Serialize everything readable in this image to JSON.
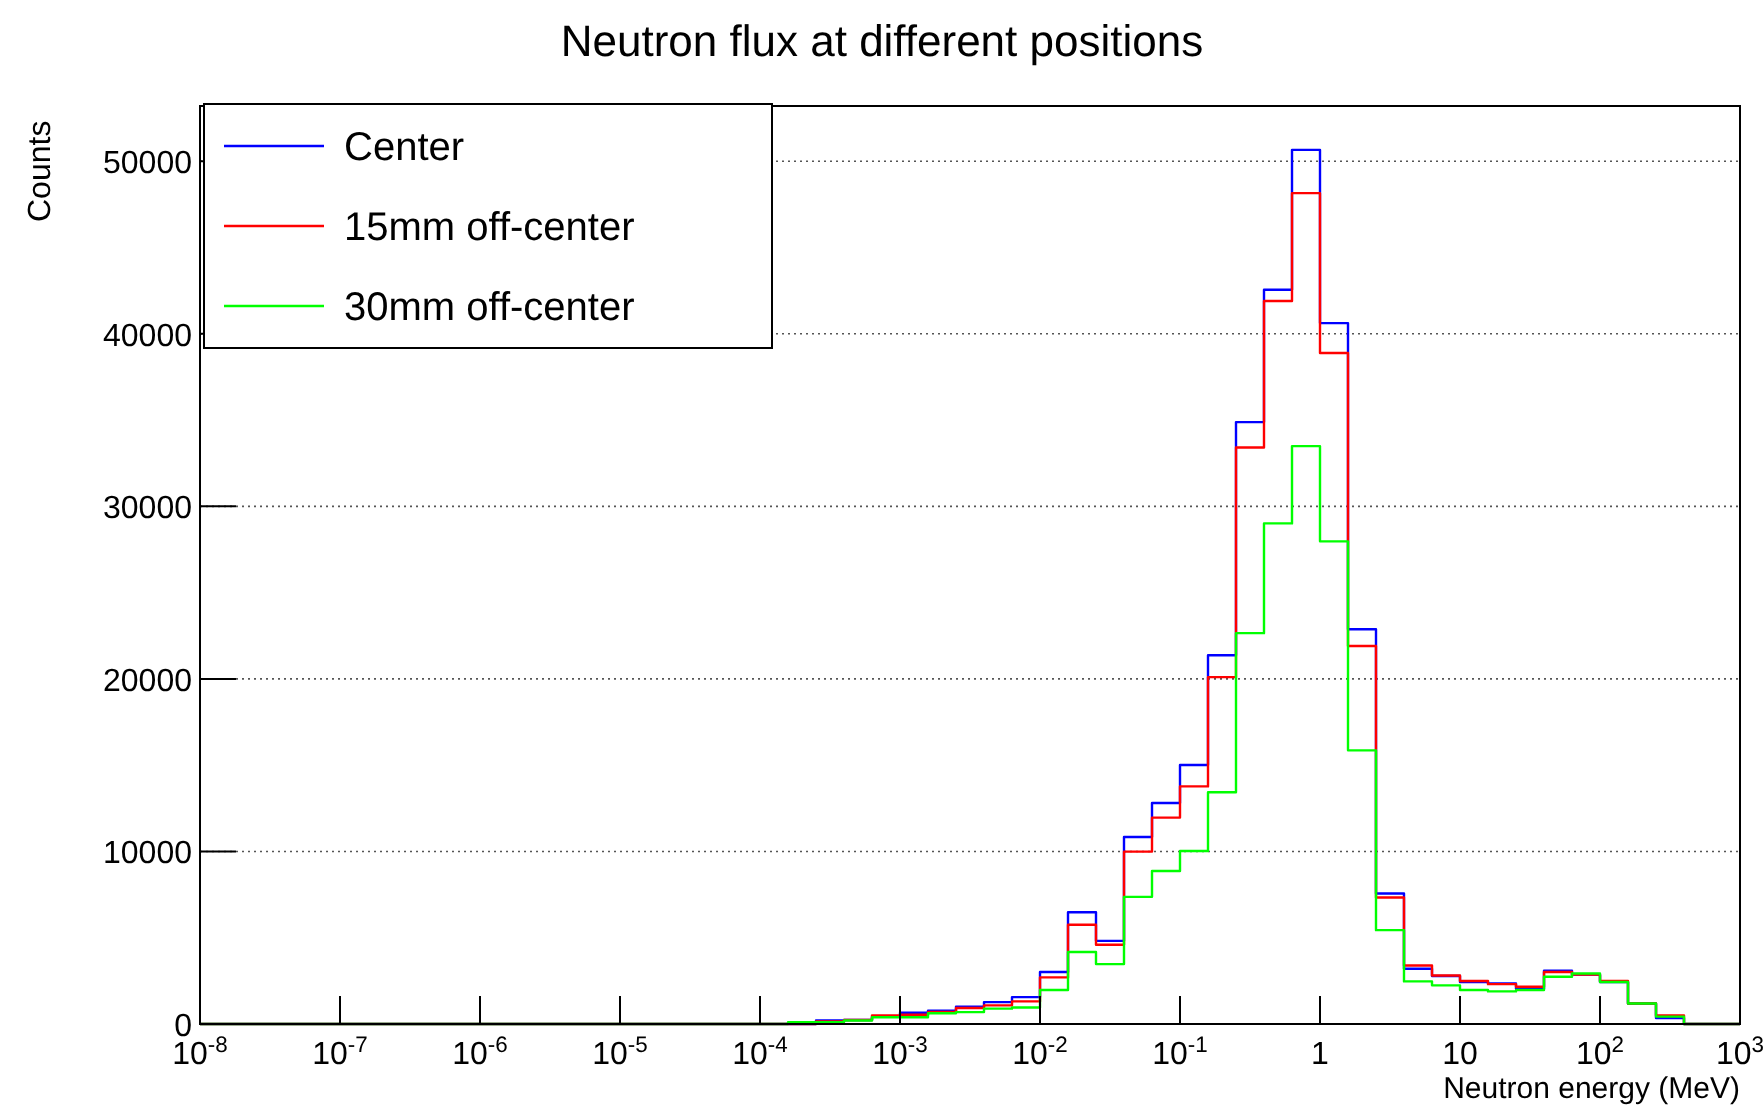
{
  "chart_data": {
    "type": "histogram",
    "title": "Neutron flux at different positions",
    "xlabel": "Neutron energy (MeV)",
    "ylabel": "Counts",
    "bins": [
      1e-08,
      1.585e-08,
      2.512e-08,
      3.981e-08,
      6.31e-08,
      1e-07,
      1.585e-07,
      2.512e-07,
      3.981e-07,
      6.31e-07,
      1e-06,
      1.585e-06,
      2.512e-06,
      3.981e-06,
      6.31e-06,
      1e-05,
      1.585e-05,
      2.512e-05,
      3.981e-05,
      6.31e-05,
      0.0001,
      0.0001585,
      0.0002512,
      0.0003981,
      0.000631,
      0.001,
      0.001585,
      0.002512,
      0.003981,
      0.00631,
      0.01,
      0.01585,
      0.02512,
      0.03981,
      0.0631,
      0.1,
      0.1585,
      0.2512,
      0.3981,
      0.631,
      1,
      1.585,
      2.512,
      3.981,
      6.31,
      10,
      15.85,
      25.12,
      39.81,
      63.1,
      100,
      158.5,
      251.2,
      398.1,
      631,
      1000
    ],
    "series": [
      {
        "name": "Center",
        "color": "#0000ff",
        "values": [
          0,
          0,
          0,
          0,
          0,
          0,
          0,
          0,
          0,
          0,
          0,
          0,
          0,
          0,
          0,
          0,
          0,
          0,
          0,
          0,
          0,
          0,
          200,
          230,
          420,
          650,
          770,
          1000,
          1270,
          1560,
          3010,
          6480,
          4820,
          10840,
          12810,
          15010,
          21370,
          34880,
          42550,
          50660,
          40620,
          22880,
          7560,
          3200,
          2780,
          2430,
          2350,
          2050,
          3090,
          2860,
          2430,
          1190,
          350,
          0,
          0
        ]
      },
      {
        "name": "15mm off-center",
        "color": "#ff0000",
        "values": [
          0,
          0,
          0,
          0,
          0,
          0,
          0,
          0,
          0,
          0,
          0,
          0,
          0,
          0,
          0,
          0,
          0,
          0,
          0,
          0,
          0,
          0,
          150,
          230,
          490,
          540,
          700,
          930,
          1080,
          1310,
          2700,
          5750,
          4590,
          9990,
          11960,
          13770,
          20100,
          33410,
          41900,
          48150,
          38890,
          21910,
          7330,
          3390,
          2810,
          2490,
          2310,
          2160,
          3010,
          2860,
          2490,
          1190,
          500,
          0,
          0
        ]
      },
      {
        "name": "30mm off-center",
        "color": "#00ff00",
        "values": [
          0,
          0,
          0,
          0,
          0,
          0,
          0,
          0,
          0,
          0,
          0,
          0,
          0,
          0,
          0,
          0,
          0,
          0,
          0,
          0,
          0,
          100,
          100,
          200,
          390,
          390,
          620,
          690,
          890,
          960,
          1970,
          4170,
          3470,
          7370,
          8870,
          10030,
          13430,
          22650,
          29010,
          33490,
          27970,
          15860,
          5440,
          2470,
          2240,
          1970,
          1890,
          1970,
          2740,
          2930,
          2430,
          1190,
          430,
          0,
          0
        ]
      }
    ],
    "log": "x",
    "xlim": [
      1e-08,
      1000
    ],
    "xticks": [
      {
        "value": 1e-08,
        "label": "10$^{-8}$"
      },
      {
        "value": 1e-07,
        "label": "10$^{-7}$"
      },
      {
        "value": 1e-06,
        "label": "10$^{-6}$"
      },
      {
        "value": 1e-05,
        "label": "10$^{-5}$"
      },
      {
        "value": 0.0001,
        "label": "10$^{-4}$"
      },
      {
        "value": 0.001,
        "label": "10$^{-3}$"
      },
      {
        "value": 0.01,
        "label": "10$^{-2}$"
      },
      {
        "value": 0.1,
        "label": "10$^{-1}$"
      },
      1,
      10,
      {
        "value": 100,
        "label": "10$^{2}$"
      },
      {
        "value": 1000,
        "label": "10$^{3}$"
      }
    ],
    "ylim": [
      0,
      53200
    ],
    "yticks": [
      0,
      10000,
      20000,
      30000,
      40000,
      50000
    ],
    "grid": "y",
    "legend": "top left"
  }
}
